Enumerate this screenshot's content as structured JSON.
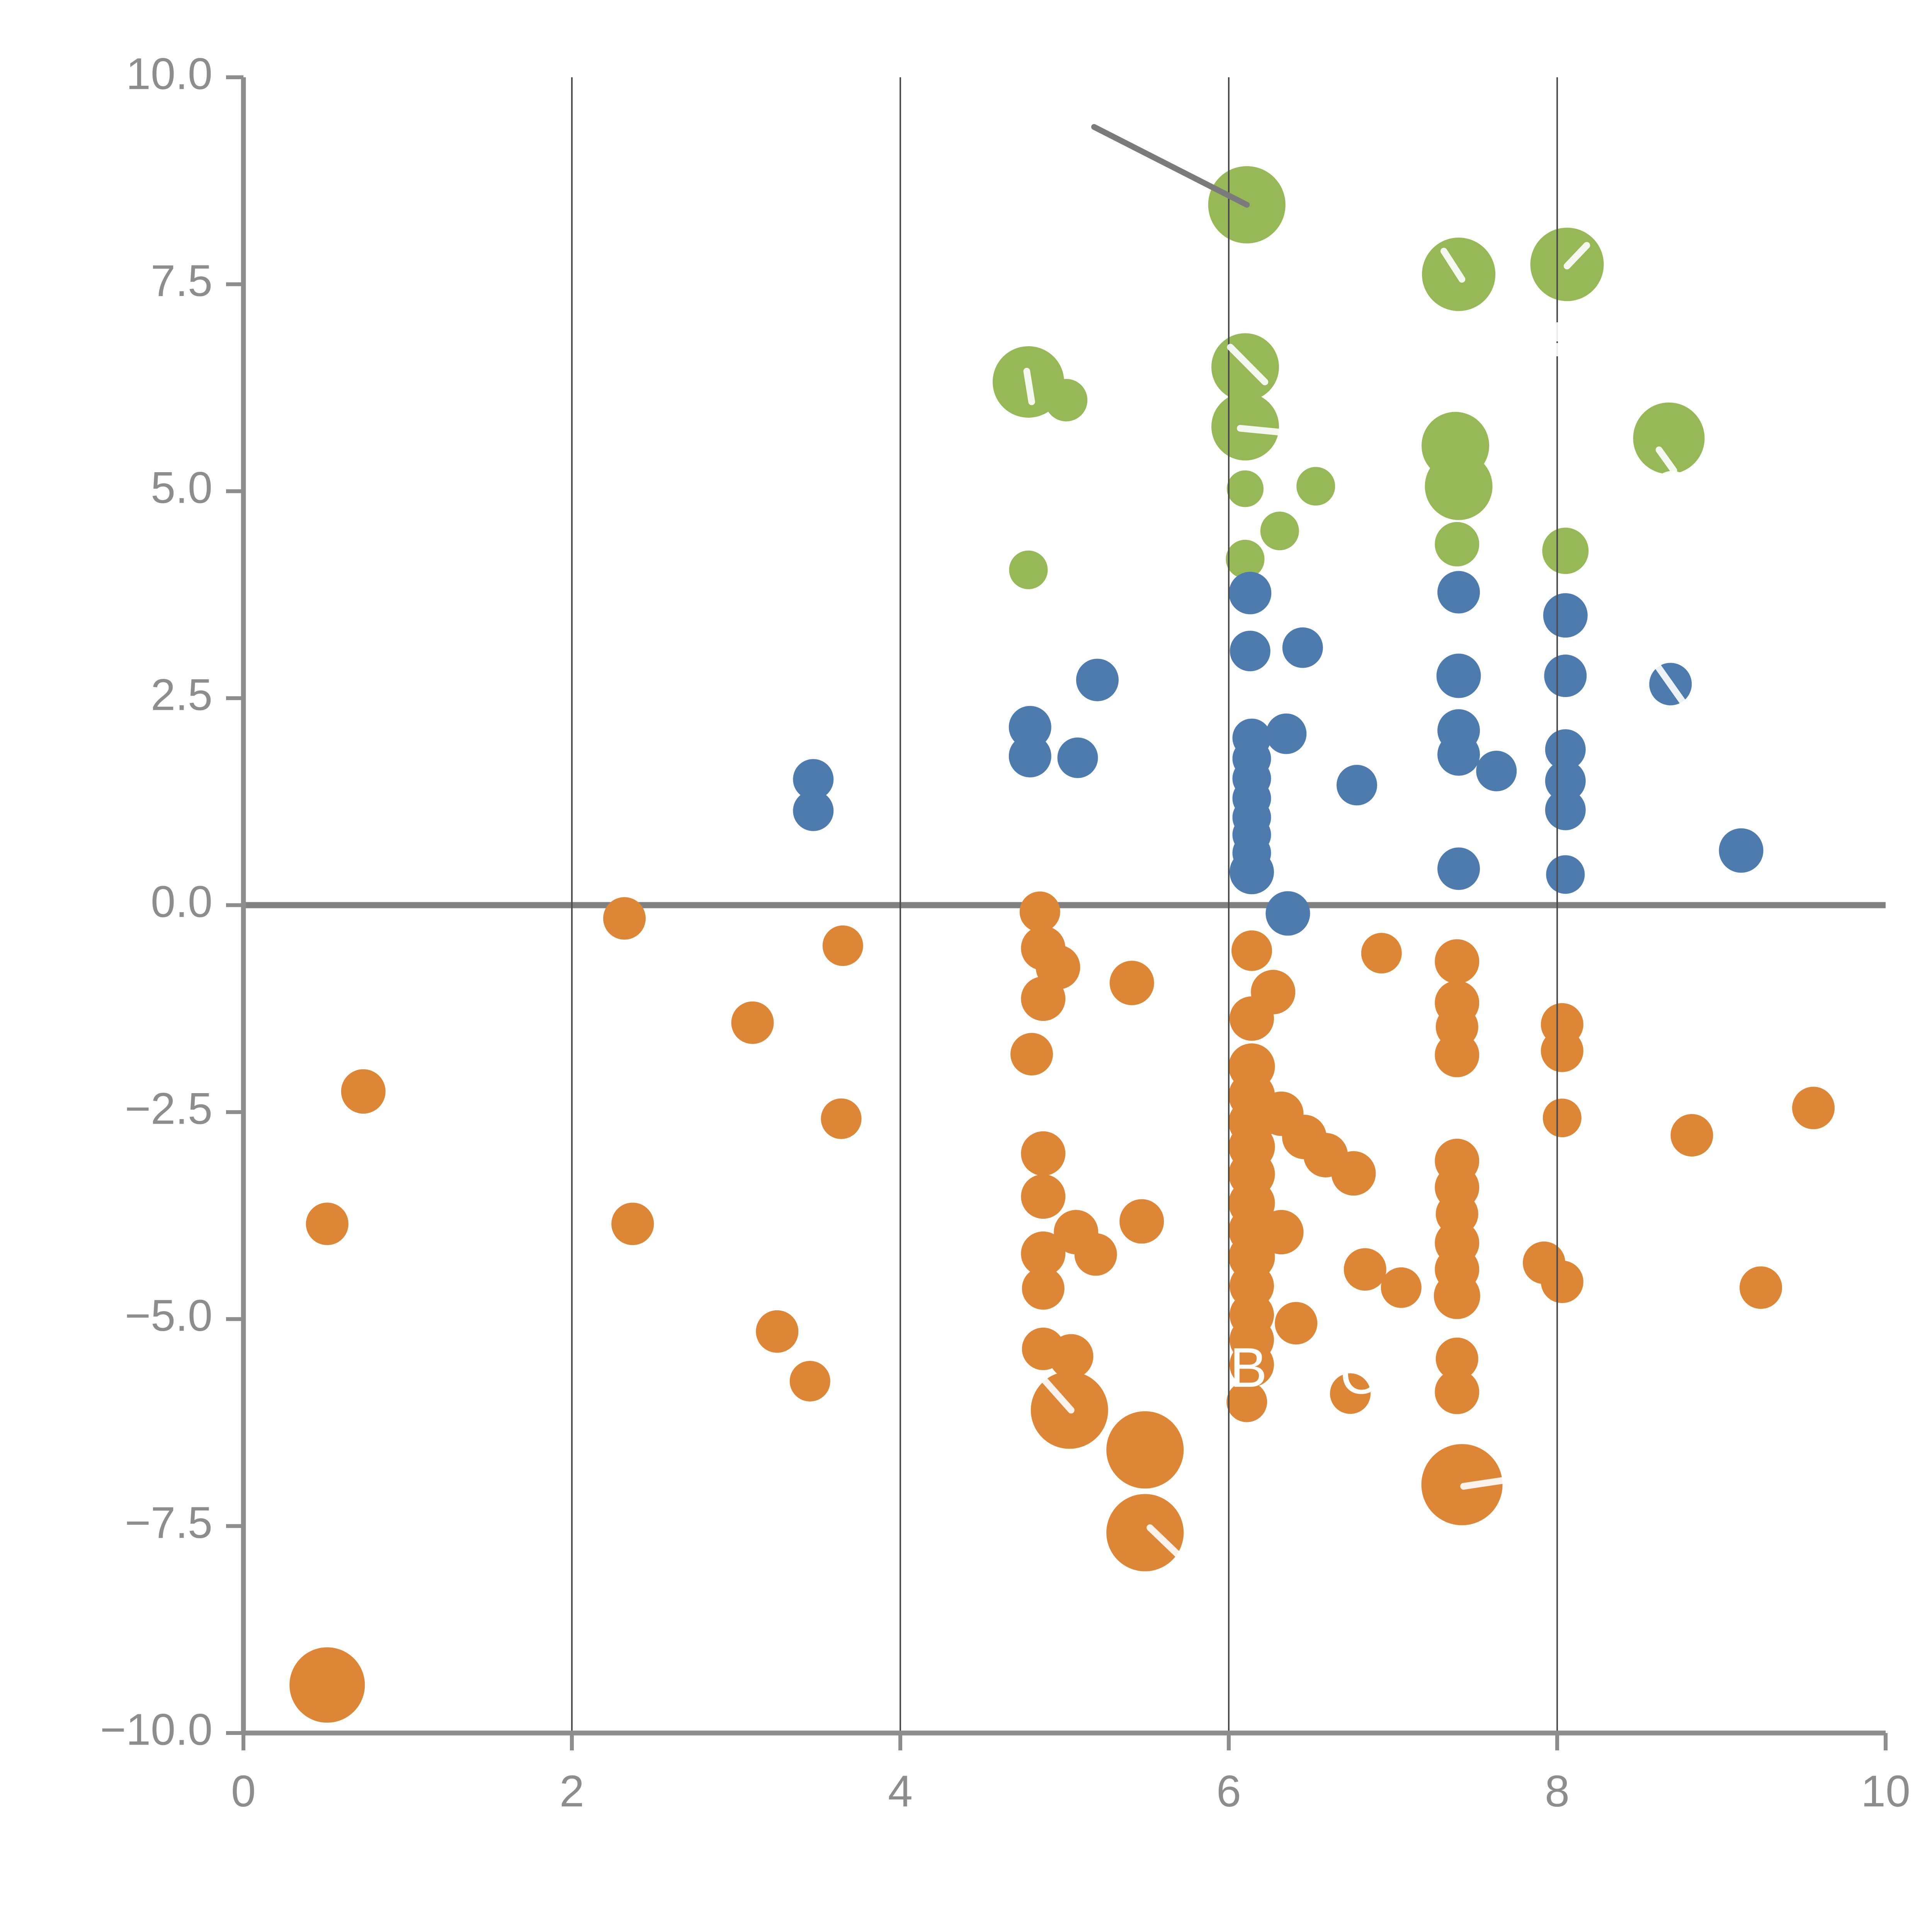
{
  "figure": {
    "background": "#ffffff",
    "tick_label_color": "#8d8d8d",
    "spine_color": "#8d8d8d",
    "grid_color": "#4d4d4d",
    "zero_line_color": "#808080",
    "annotation_line_color": "#7b7b7b"
  },
  "chart_data": {
    "type": "scatter",
    "title": "",
    "xlabel": "",
    "ylabel": "",
    "xlim": [
      0,
      10
    ],
    "ylim": [
      -10,
      10
    ],
    "grid": "vertical-only",
    "legend_position": "none",
    "x_ticks": [
      {
        "v": 0,
        "label": "0"
      },
      {
        "v": 2,
        "label": "2"
      },
      {
        "v": 4,
        "label": "4"
      },
      {
        "v": 6,
        "label": "6"
      },
      {
        "v": 8,
        "label": "8"
      },
      {
        "v": 10,
        "label": "10"
      }
    ],
    "y_ticks": [
      {
        "v": 10,
        "label": "10.0"
      },
      {
        "v": 7.5,
        "label": "7.5"
      },
      {
        "v": 5,
        "label": "5.0"
      },
      {
        "v": 2.5,
        "label": "2.5"
      },
      {
        "v": 0,
        "label": "0.0"
      },
      {
        "v": -2.5,
        "label": "−2.5"
      },
      {
        "v": -5,
        "label": "−5.0"
      },
      {
        "v": -7.5,
        "label": "−7.5"
      },
      {
        "v": -10,
        "label": "−10.0"
      }
    ],
    "gridline_x_values": [
      2,
      4,
      6,
      8
    ],
    "zero_line_y": 0,
    "annotation_line": {
      "x1": 5.18,
      "y1": 9.4,
      "x2": 6.11,
      "y2": 8.46
    },
    "series": [
      {
        "name": "green",
        "color": "#97b857",
        "points": [
          [
            6.11,
            8.46,
            20
          ],
          [
            7.4,
            7.62,
            19
          ],
          [
            8.06,
            7.74,
            19
          ],
          [
            4.78,
            6.32,
            18.5
          ],
          [
            5.01,
            6.1,
            11
          ],
          [
            6.1,
            6.5,
            17.5
          ],
          [
            6.1,
            5.78,
            17.5
          ],
          [
            8.68,
            5.64,
            18.5
          ],
          [
            7.38,
            5.55,
            17.5
          ],
          [
            7.4,
            5.06,
            17.5
          ],
          [
            6.1,
            5.03,
            9.5
          ],
          [
            6.53,
            5.06,
            10
          ],
          [
            6.31,
            4.52,
            10
          ],
          [
            6.1,
            4.18,
            10
          ],
          [
            4.78,
            4.05,
            10
          ],
          [
            7.39,
            4.36,
            11.5
          ],
          [
            8.05,
            4.28,
            12
          ]
        ]
      },
      {
        "name": "blue",
        "color": "#4e7bae",
        "points": [
          [
            6.13,
            3.77,
            11
          ],
          [
            6.13,
            3.07,
            10.5
          ],
          [
            6.45,
            3.11,
            10.5
          ],
          [
            5.2,
            2.72,
            11
          ],
          [
            4.79,
            2.15,
            11
          ],
          [
            4.79,
            1.8,
            11
          ],
          [
            5.08,
            1.78,
            10.5
          ],
          [
            6.14,
            2.02,
            10
          ],
          [
            6.14,
            1.77,
            10
          ],
          [
            6.14,
            1.53,
            10
          ],
          [
            6.14,
            1.29,
            10
          ],
          [
            6.14,
            1.06,
            10
          ],
          [
            6.14,
            0.85,
            10
          ],
          [
            6.14,
            0.63,
            10
          ],
          [
            6.14,
            0.4,
            11.5
          ],
          [
            6.35,
            2.07,
            10.5
          ],
          [
            6.36,
            -0.1,
            11.5
          ],
          [
            6.78,
            1.45,
            10.5
          ],
          [
            3.47,
            1.52,
            10.5
          ],
          [
            3.47,
            1.14,
            10.5
          ],
          [
            7.4,
            3.78,
            11
          ],
          [
            7.4,
            2.77,
            11.5
          ],
          [
            7.4,
            2.11,
            11
          ],
          [
            7.4,
            1.82,
            11
          ],
          [
            7.63,
            1.62,
            10.5
          ],
          [
            7.4,
            0.44,
            11
          ],
          [
            8.05,
            3.5,
            11.5
          ],
          [
            8.05,
            2.77,
            11
          ],
          [
            8.05,
            1.88,
            10.5
          ],
          [
            8.05,
            1.5,
            10.5
          ],
          [
            8.05,
            1.15,
            10.5
          ],
          [
            8.05,
            0.37,
            10
          ],
          [
            8.69,
            2.67,
            11
          ],
          [
            9.12,
            0.66,
            11.5
          ]
        ]
      },
      {
        "name": "orange",
        "color": "#dd8636",
        "points": [
          [
            2.32,
            -0.16,
            11
          ],
          [
            0.73,
            -2.25,
            11.5
          ],
          [
            0.51,
            -3.85,
            11
          ],
          [
            3.1,
            -1.42,
            11
          ],
          [
            2.37,
            -3.85,
            11
          ],
          [
            3.25,
            -5.15,
            11
          ],
          [
            3.45,
            -5.75,
            10.5
          ],
          [
            3.65,
            -0.49,
            10.5
          ],
          [
            3.64,
            -2.58,
            10.5
          ],
          [
            0.51,
            -9.42,
            19.5
          ],
          [
            4.85,
            -0.08,
            10.5
          ],
          [
            4.87,
            -0.52,
            11.5
          ],
          [
            4.96,
            -0.75,
            11.5
          ],
          [
            4.87,
            -1.13,
            11.5
          ],
          [
            4.8,
            -1.8,
            11
          ],
          [
            4.87,
            -3.0,
            11.5
          ],
          [
            4.87,
            -3.52,
            11.5
          ],
          [
            4.87,
            -4.21,
            11.5
          ],
          [
            4.87,
            -4.63,
            11
          ],
          [
            4.87,
            -5.36,
            11
          ],
          [
            5.04,
            -5.45,
            11.5
          ],
          [
            5.07,
            -3.95,
            11.5
          ],
          [
            5.19,
            -4.22,
            11
          ],
          [
            5.41,
            -0.94,
            11.5
          ],
          [
            5.47,
            -3.82,
            11.5
          ],
          [
            5.03,
            -6.1,
            20
          ],
          [
            5.49,
            -6.58,
            20
          ],
          [
            5.49,
            -7.58,
            20
          ],
          [
            6.14,
            -0.55,
            10.5
          ],
          [
            6.27,
            -1.05,
            11.5
          ],
          [
            6.14,
            -1.37,
            11.5
          ],
          [
            6.14,
            -1.95,
            12
          ],
          [
            6.14,
            -2.3,
            12
          ],
          [
            6.14,
            -2.62,
            12
          ],
          [
            6.14,
            -2.92,
            12
          ],
          [
            6.32,
            -2.52,
            11.5
          ],
          [
            6.46,
            -2.8,
            11.5
          ],
          [
            6.59,
            -3.02,
            11.5
          ],
          [
            6.76,
            -3.24,
            11.5
          ],
          [
            6.14,
            -3.25,
            12
          ],
          [
            6.14,
            -3.6,
            12
          ],
          [
            6.14,
            -3.93,
            12
          ],
          [
            6.14,
            -4.25,
            12
          ],
          [
            6.14,
            -4.6,
            11.5
          ],
          [
            6.32,
            -3.95,
            11.5
          ],
          [
            6.83,
            -4.4,
            11
          ],
          [
            6.14,
            -4.95,
            11.5
          ],
          [
            6.14,
            -5.25,
            11.5
          ],
          [
            6.14,
            -5.55,
            11.5
          ],
          [
            6.41,
            -5.05,
            11
          ],
          [
            6.11,
            -6.0,
            10.5
          ],
          [
            6.74,
            -5.9,
            10.5
          ],
          [
            6.93,
            -0.58,
            10.5
          ],
          [
            7.05,
            -4.62,
            10.5
          ],
          [
            7.39,
            -0.68,
            11.5
          ],
          [
            7.39,
            -1.18,
            11.5
          ],
          [
            7.39,
            -1.47,
            11
          ],
          [
            7.39,
            -1.81,
            11.5
          ],
          [
            7.39,
            -3.09,
            11.5
          ],
          [
            7.39,
            -3.41,
            11.5
          ],
          [
            7.39,
            -3.73,
            11
          ],
          [
            7.39,
            -4.08,
            11.5
          ],
          [
            7.39,
            -4.4,
            11.5
          ],
          [
            7.39,
            -4.72,
            12
          ],
          [
            7.39,
            -5.48,
            11
          ],
          [
            7.39,
            -5.88,
            11.5
          ],
          [
            8.03,
            -1.44,
            11
          ],
          [
            8.03,
            -1.76,
            11
          ],
          [
            8.03,
            -2.57,
            10
          ],
          [
            7.92,
            -4.32,
            11
          ],
          [
            8.03,
            -4.55,
            11
          ],
          [
            8.82,
            -2.78,
            11
          ],
          [
            9.56,
            -2.45,
            11
          ],
          [
            9.24,
            -4.62,
            11
          ],
          [
            7.42,
            -7.0,
            21
          ]
        ]
      }
    ],
    "white_overlays": {
      "segments": [
        [
          7.31,
          7.9,
          7.42,
          7.56
        ],
        [
          8.06,
          7.72,
          8.18,
          7.97
        ],
        [
          8.0,
          7.0,
          8.0,
          6.85
        ],
        [
          8.0,
          6.75,
          8.0,
          6.67
        ],
        [
          4.77,
          6.45,
          4.8,
          6.08
        ],
        [
          6.01,
          6.74,
          6.22,
          6.32
        ],
        [
          6.07,
          5.76,
          6.38,
          5.7
        ],
        [
          8.62,
          5.5,
          8.71,
          5.25
        ],
        [
          8.61,
          2.89,
          8.77,
          2.44
        ],
        [
          4.87,
          -5.72,
          5.04,
          -6.1
        ],
        [
          5.52,
          -7.52,
          5.73,
          -7.92
        ],
        [
          7.43,
          -7.02,
          7.7,
          -6.94
        ]
      ],
      "circle": {
        "x": 8.7,
        "y": 5.0,
        "r": 0.1
      },
      "labels": [
        {
          "text": "B",
          "x": 6.12,
          "y": -5.64
        },
        {
          "text": "C",
          "x": 6.8,
          "y": -5.72
        }
      ]
    }
  }
}
